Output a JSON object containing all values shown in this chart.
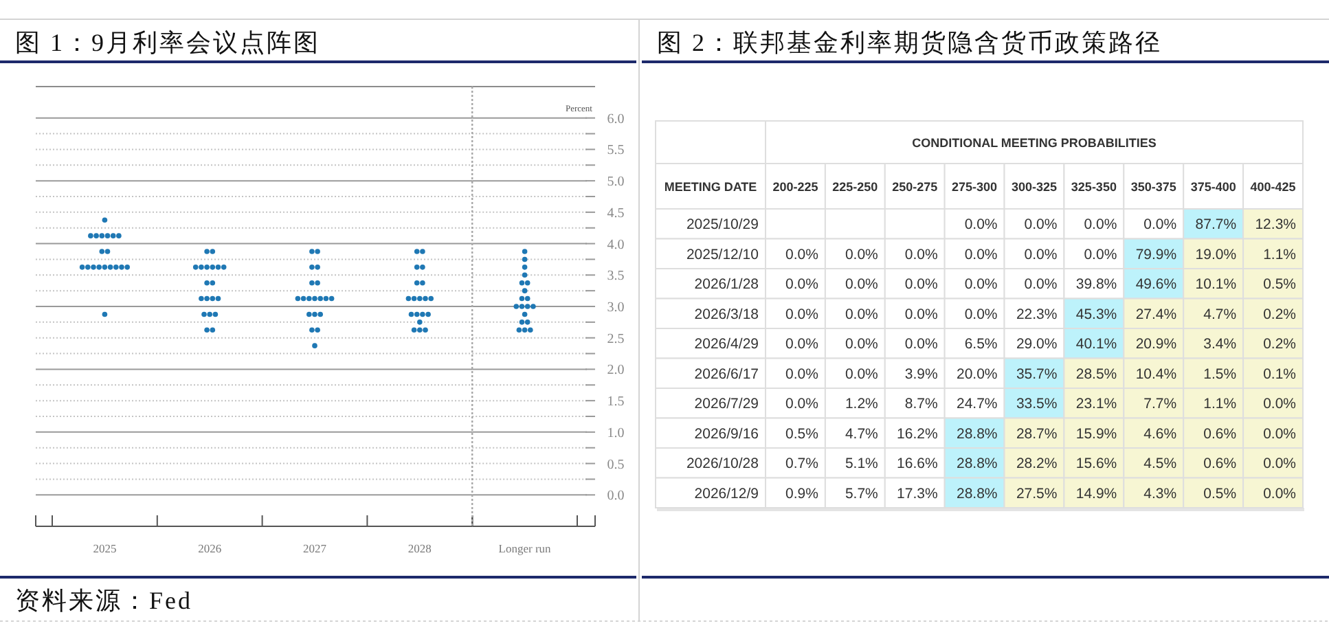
{
  "chart_data": [
    {
      "type": "scatter",
      "title": "图 1：9月利率会议点阵图",
      "annotations": [
        "资料来源：Fed"
      ],
      "categories": [
        "2025",
        "2026",
        "2027",
        "2028"
      ],
      "ylim": [
        -0.5,
        6.5
      ],
      "tick_labels": "x",
      "yticks": [
        {
          "value": 0,
          "label": null
        },
        {
          "value": 0.25,
          "label": null
        },
        {
          "value": 0.5,
          "label": null
        },
        {
          "value": 0.75,
          "label": null
        },
        {
          "value": 1,
          "label": null
        },
        {
          "value": 1.25,
          "label": null
        },
        {
          "value": 1.5,
          "label": null
        },
        {
          "value": 1.75,
          "label": null
        },
        {
          "value": 2,
          "label": null
        },
        {
          "value": 2.25,
          "label": null
        },
        {
          "value": 2.5,
          "label": null
        },
        {
          "value": 2.75,
          "label": null
        },
        {
          "value": 3,
          "label": null
        },
        {
          "value": 3.25,
          "label": null
        },
        {
          "value": 3.5,
          "label": null
        },
        {
          "value": 3.75,
          "label": null
        },
        {
          "value": 4,
          "label": null
        },
        {
          "value": 4.25,
          "label": null
        },
        {
          "value": 4.5,
          "label": null
        },
        {
          "value": 4.75,
          "label": null
        },
        {
          "value": 5,
          "label": null
        },
        {
          "value": 5.25,
          "label": null
        },
        {
          "value": 5.5,
          "label": null
        },
        {
          "value": 5.75,
          "label": null
        },
        {
          "value": 6,
          "label": null
        }
      ],
      "grid": "y",
      "marker": "circle",
      "series": [
        {
          "color": "#1f78b4",
          "values": [
            4.375,
            3.875,
            3.875,
            3.875
          ]
        },
        {
          "color": "#1f78b4",
          "values": [
            4.125,
            3.875,
            3.875,
            3.875
          ]
        },
        {
          "color": "#1f78b4",
          "values": [
            4.125,
            3.625,
            3.625,
            3.625
          ]
        },
        {
          "color": "#1f78b4",
          "values": [
            4.125,
            3.625,
            3.625,
            3.625
          ]
        },
        {
          "color": "#1f78b4",
          "values": [
            4.125,
            3.625,
            3.375,
            3.375
          ]
        },
        {
          "color": "#1f78b4",
          "values": [
            4.125,
            3.625,
            3.375,
            3.375
          ]
        },
        {
          "color": "#1f78b4",
          "values": [
            4.125,
            3.625,
            3.125,
            3.125
          ]
        },
        {
          "color": "#1f78b4",
          "values": [
            3.875,
            3.625,
            3.125,
            3.125
          ]
        },
        {
          "color": "#1f78b4",
          "values": [
            3.875,
            3.375,
            3.125,
            3.125
          ]
        },
        {
          "color": "#1f78b4",
          "values": [
            3.625,
            3.375,
            3.125,
            3.125
          ]
        },
        {
          "color": "#1f78b4",
          "values": [
            3.625,
            3.125,
            3.125,
            3.125
          ]
        },
        {
          "color": "#1f78b4",
          "values": [
            3.625,
            3.125,
            3.125,
            2.875
          ]
        },
        {
          "color": "#1f78b4",
          "values": [
            3.625,
            3.125,
            3.125,
            2.875
          ]
        },
        {
          "color": "#1f78b4",
          "values": [
            3.625,
            3.125,
            2.875,
            2.875
          ]
        },
        {
          "color": "#1f78b4",
          "values": [
            3.625,
            2.875,
            2.875,
            2.875
          ]
        },
        {
          "color": "#1f78b4",
          "values": [
            3.625,
            2.875,
            2.875,
            2.75
          ]
        },
        {
          "color": "#1f78b4",
          "values": [
            3.625,
            2.875,
            2.625,
            2.625
          ]
        },
        {
          "color": "#1f78b4",
          "values": [
            3.625,
            2.625,
            2.625,
            2.625
          ]
        },
        {
          "color": "#1f78b4",
          "values": [
            2.875,
            2.625,
            2.375,
            2.625
          ]
        }
      ]
    },
    {
      "type": "scatter",
      "ylabel": "Percent",
      "categories": [
        "Longer run"
      ],
      "ylim": [
        -0.5,
        6.5
      ],
      "yticks": [
        {
          "value": 0,
          "label": "0.0"
        },
        {
          "value": 0.25,
          "label": null
        },
        {
          "value": 0.5,
          "label": "0.5"
        },
        {
          "value": 0.75,
          "label": null
        },
        {
          "value": 1,
          "label": "1.0"
        },
        {
          "value": 1.25,
          "label": null
        },
        {
          "value": 1.5,
          "label": "1.5"
        },
        {
          "value": 1.75,
          "label": null
        },
        {
          "value": 2,
          "label": "2.0"
        },
        {
          "value": 2.25,
          "label": null
        },
        {
          "value": 2.5,
          "label": "2.5"
        },
        {
          "value": 2.75,
          "label": null
        },
        {
          "value": 3,
          "label": "3.0"
        },
        {
          "value": 3.25,
          "label": null
        },
        {
          "value": 3.5,
          "label": "3.5"
        },
        {
          "value": 3.75,
          "label": null
        },
        {
          "value": 4,
          "label": "4.0"
        },
        {
          "value": 4.25,
          "label": null
        },
        {
          "value": 4.5,
          "label": "4.5"
        },
        {
          "value": 4.75,
          "label": null
        },
        {
          "value": 5,
          "label": "5.0"
        },
        {
          "value": 5.25,
          "label": null
        },
        {
          "value": 5.5,
          "label": "5.5"
        },
        {
          "value": 5.75,
          "label": null
        },
        {
          "value": 6,
          "label": "6.0"
        }
      ],
      "grid": "y",
      "marker": "circle",
      "series": [
        {
          "color": "#1f78b4",
          "values": [
            3.875
          ]
        },
        {
          "color": "#1f78b4",
          "values": [
            3.75
          ]
        },
        {
          "color": "#1f78b4",
          "values": [
            3.625
          ]
        },
        {
          "color": "#1f78b4",
          "values": [
            3.5
          ]
        },
        {
          "color": "#1f78b4",
          "values": [
            3.375
          ]
        },
        {
          "color": "#1f78b4",
          "values": [
            3.375
          ]
        },
        {
          "color": "#1f78b4",
          "values": [
            3.25
          ]
        },
        {
          "color": "#1f78b4",
          "values": [
            3.125
          ]
        },
        {
          "color": "#1f78b4",
          "values": [
            3.125
          ]
        },
        {
          "color": "#1f78b4",
          "values": [
            3.0
          ]
        },
        {
          "color": "#1f78b4",
          "values": [
            3.0
          ]
        },
        {
          "color": "#1f78b4",
          "values": [
            3.0
          ]
        },
        {
          "color": "#1f78b4",
          "values": [
            3.0
          ]
        },
        {
          "color": "#1f78b4",
          "values": [
            2.875
          ]
        },
        {
          "color": "#1f78b4",
          "values": [
            2.75
          ]
        },
        {
          "color": "#1f78b4",
          "values": [
            2.75
          ]
        },
        {
          "color": "#1f78b4",
          "values": [
            2.625
          ]
        },
        {
          "color": "#1f78b4",
          "values": [
            2.625
          ]
        },
        {
          "color": "#1f78b4",
          "values": [
            2.625
          ]
        }
      ]
    },
    {
      "type": "heatmap",
      "title": "图 2：联邦基金利率期货隐含货币政策路径",
      "subtitle": "CONDITIONAL MEETING PROBABILITIES",
      "ylabel": "MEETING DATE",
      "categories": [
        "200-225",
        "225-250",
        "250-275",
        "275-300",
        "300-325",
        "325-350",
        "350-375",
        "375-400",
        "400-425"
      ],
      "y_categories": [
        "2025/10/29",
        "2025/12/10",
        "2026/1/28",
        "2026/3/18",
        "2026/4/29",
        "2026/6/17",
        "2026/7/29",
        "2026/9/16",
        "2026/10/28",
        "2026/12/9"
      ],
      "cells": [
        [
          null,
          null,
          null,
          0.0,
          0.0,
          0.0,
          0.0,
          87.7,
          12.3
        ],
        [
          0.0,
          0.0,
          0.0,
          0.0,
          0.0,
          0.0,
          79.9,
          19.0,
          1.1
        ],
        [
          0.0,
          0.0,
          0.0,
          0.0,
          0.0,
          39.8,
          49.6,
          10.1,
          0.5
        ],
        [
          0.0,
          0.0,
          0.0,
          0.0,
          22.3,
          45.3,
          27.4,
          4.7,
          0.2
        ],
        [
          0.0,
          0.0,
          0.0,
          6.5,
          29.0,
          40.1,
          20.9,
          3.4,
          0.2
        ],
        [
          0.0,
          0.0,
          3.9,
          20.0,
          35.7,
          28.5,
          10.4,
          1.5,
          0.1
        ],
        [
          0.0,
          1.2,
          8.7,
          24.7,
          33.5,
          23.1,
          7.7,
          1.1,
          0.0
        ],
        [
          0.5,
          4.7,
          16.2,
          28.8,
          28.7,
          15.9,
          4.6,
          0.6,
          0.0
        ],
        [
          0.7,
          5.1,
          16.6,
          28.8,
          28.2,
          15.6,
          4.5,
          0.6,
          0.0
        ],
        [
          0.9,
          5.7,
          17.3,
          28.8,
          27.5,
          14.9,
          4.3,
          0.5,
          0.0
        ]
      ],
      "cell_labels": [
        [
          null,
          null,
          null,
          "0.0%",
          "0.0%",
          "0.0%",
          "0.0%",
          "87.7%",
          "12.3%"
        ],
        [
          "0.0%",
          "0.0%",
          "0.0%",
          "0.0%",
          "0.0%",
          "0.0%",
          "79.9%",
          "19.0%",
          "1.1%"
        ],
        [
          "0.0%",
          "0.0%",
          "0.0%",
          "0.0%",
          "0.0%",
          "39.8%",
          "49.6%",
          "10.1%",
          "0.5%"
        ],
        [
          "0.0%",
          "0.0%",
          "0.0%",
          "0.0%",
          "22.3%",
          "45.3%",
          "27.4%",
          "4.7%",
          "0.2%"
        ],
        [
          "0.0%",
          "0.0%",
          "0.0%",
          "6.5%",
          "29.0%",
          "40.1%",
          "20.9%",
          "3.4%",
          "0.2%"
        ],
        [
          "0.0%",
          "0.0%",
          "3.9%",
          "20.0%",
          "35.7%",
          "28.5%",
          "10.4%",
          "1.5%",
          "0.1%"
        ],
        [
          "0.0%",
          "1.2%",
          "8.7%",
          "24.7%",
          "33.5%",
          "23.1%",
          "7.7%",
          "1.1%",
          "0.0%"
        ],
        [
          "0.5%",
          "4.7%",
          "16.2%",
          "28.8%",
          "28.7%",
          "15.9%",
          "4.6%",
          "0.6%",
          "0.0%"
        ],
        [
          "0.7%",
          "5.1%",
          "16.6%",
          "28.8%",
          "28.2%",
          "15.6%",
          "4.5%",
          "0.6%",
          "0.0%"
        ],
        [
          "0.9%",
          "5.7%",
          "17.3%",
          "28.8%",
          "27.5%",
          "14.9%",
          "4.3%",
          "0.5%",
          "0.0%"
        ]
      ],
      "colors": [
        [
          null,
          null,
          null,
          "#ffffff",
          "#ffffff",
          "#ffffff",
          "#ffffff",
          "#bdf2fb",
          "#f7f6d3"
        ],
        [
          "#ffffff",
          "#ffffff",
          "#ffffff",
          "#ffffff",
          "#ffffff",
          "#ffffff",
          "#bdf2fb",
          "#f7f6d3",
          "#f7f6d3"
        ],
        [
          "#ffffff",
          "#ffffff",
          "#ffffff",
          "#ffffff",
          "#ffffff",
          "#ffffff",
          "#bdf2fb",
          "#f7f6d3",
          "#f7f6d3"
        ],
        [
          "#ffffff",
          "#ffffff",
          "#ffffff",
          "#ffffff",
          "#ffffff",
          "#bdf2fb",
          "#f7f6d3",
          "#f7f6d3",
          "#f7f6d3"
        ],
        [
          "#ffffff",
          "#ffffff",
          "#ffffff",
          "#ffffff",
          "#ffffff",
          "#bdf2fb",
          "#f7f6d3",
          "#f7f6d3",
          "#f7f6d3"
        ],
        [
          "#ffffff",
          "#ffffff",
          "#ffffff",
          "#ffffff",
          "#bdf2fb",
          "#f7f6d3",
          "#f7f6d3",
          "#f7f6d3",
          "#f7f6d3"
        ],
        [
          "#ffffff",
          "#ffffff",
          "#ffffff",
          "#ffffff",
          "#bdf2fb",
          "#f7f6d3",
          "#f7f6d3",
          "#f7f6d3",
          "#f7f6d3"
        ],
        [
          "#ffffff",
          "#ffffff",
          "#ffffff",
          "#bdf2fb",
          "#f7f6d3",
          "#f7f6d3",
          "#f7f6d3",
          "#f7f6d3",
          "#f7f6d3"
        ],
        [
          "#ffffff",
          "#ffffff",
          "#ffffff",
          "#bdf2fb",
          "#f7f6d3",
          "#f7f6d3",
          "#f7f6d3",
          "#f7f6d3",
          "#f7f6d3"
        ],
        [
          "#ffffff",
          "#ffffff",
          "#ffffff",
          "#bdf2fb",
          "#f7f6d3",
          "#f7f6d3",
          "#f7f6d3",
          "#f7f6d3",
          "#f7f6d3"
        ]
      ]
    }
  ]
}
